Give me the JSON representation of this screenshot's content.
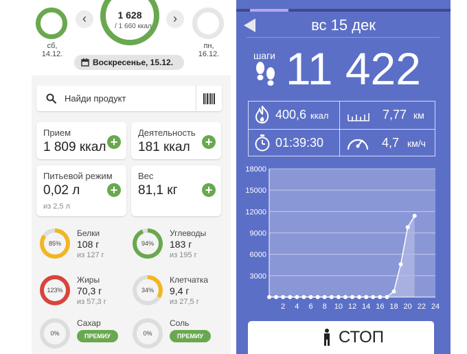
{
  "left": {
    "day_prev_label": "сб,\n14.12.",
    "day_next_label": "пн,\n16.12.",
    "calories_value": "1 628",
    "calories_goal": "/ 1 660 ккал",
    "nav_prev_glyph": "‹",
    "nav_next_glyph": "›",
    "current_date": "Воскресенье, 15.12.",
    "calendar_icon": "calendar-icon",
    "search_placeholder": "Найди продукт",
    "search_icon": "search-icon",
    "barcode_icon": "barcode-icon",
    "cards": [
      {
        "title": "Прием",
        "value": "1 809 ккал",
        "sub": ""
      },
      {
        "title": "Деятельность",
        "value": "181 ккал",
        "sub": ""
      },
      {
        "title": "Питьевой режим",
        "value": "0,02 л",
        "sub": "из 2,5 л"
      },
      {
        "title": "Вес",
        "value": "81,1 кг",
        "sub": ""
      }
    ],
    "plus_glyph": "+",
    "nutrients": [
      {
        "name": "Белки",
        "value": "108 г",
        "goal": "из 127 г",
        "percent": "85%",
        "fill": 0.85,
        "color": "#f1b623"
      },
      {
        "name": "Углеводы",
        "value": "183 г",
        "goal": "из 195 г",
        "percent": "94%",
        "fill": 0.94,
        "color": "#6aa84f"
      },
      {
        "name": "Жиры",
        "value": "70,3 г",
        "goal": "из 57,3 г",
        "percent": "123%",
        "fill": 1.0,
        "color": "#d9443c"
      },
      {
        "name": "Клетчатка",
        "value": "9,4 г",
        "goal": "из 27,5 г",
        "percent": "34%",
        "fill": 0.34,
        "color": "#f1b623"
      },
      {
        "name": "Сахар",
        "percent": "0%",
        "fill": 0,
        "color": "#dddddd"
      },
      {
        "name": "Соль",
        "percent": "0%",
        "fill": 0,
        "color": "#dddddd"
      }
    ],
    "premium_label": "ПРЕМИУ",
    "colors": {
      "green": "#6aa84f",
      "yellow": "#f1b623",
      "red": "#d9443c"
    }
  },
  "right": {
    "back_icon": "back-arrow-icon",
    "date": "вс 15 дек",
    "steps_label": "шаги",
    "steps_icon": "footprints-icon",
    "steps_value": "11 422",
    "stats": [
      {
        "icon": "fire-icon",
        "value": "400,6",
        "unit": "ккал"
      },
      {
        "icon": "ruler-icon",
        "value": "7,77",
        "unit": "км"
      },
      {
        "icon": "stopwatch-icon",
        "value": "01:39:30",
        "unit": ""
      },
      {
        "icon": "speedometer-icon",
        "value": "4,7",
        "unit": "км/ч"
      }
    ],
    "stop_label": "СТОП",
    "stop_icon": "person-icon",
    "colors": {
      "background": "#5c6fc7",
      "accent": "#b9a4f0"
    }
  },
  "chart_data": {
    "type": "line",
    "x": [
      0,
      1,
      2,
      3,
      4,
      5,
      6,
      7,
      8,
      9,
      10,
      11,
      12,
      13,
      14,
      15,
      16,
      17,
      18,
      19,
      20,
      21
    ],
    "y": [
      0,
      0,
      0,
      0,
      0,
      0,
      0,
      0,
      0,
      0,
      0,
      0,
      0,
      0,
      0,
      0,
      0,
      0,
      800,
      4600,
      9800,
      11400
    ],
    "xticks": [
      "2",
      "4",
      "6",
      "8",
      "10",
      "12",
      "14",
      "16",
      "18",
      "20",
      "22",
      "24"
    ],
    "yticks": [
      "18000",
      "15000",
      "12000",
      "9000",
      "6000",
      "3000"
    ],
    "xlim": [
      0,
      24
    ],
    "ylim": [
      0,
      18000
    ],
    "grid": true
  }
}
